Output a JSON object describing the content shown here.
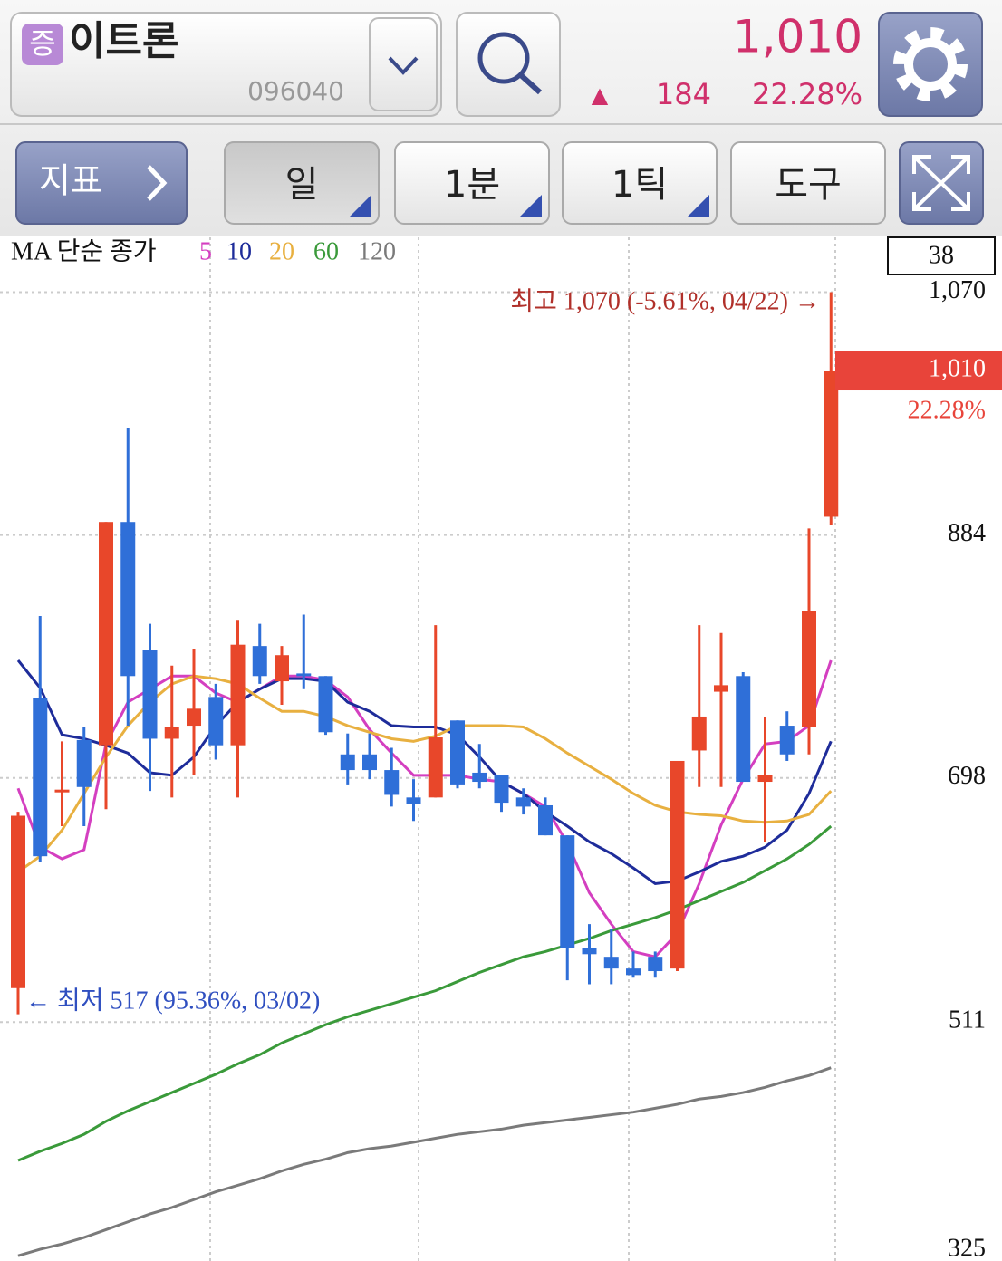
{
  "header": {
    "badge": "증",
    "name": "이트론",
    "code": "096040",
    "price": "1,010",
    "change_arrow": "▲",
    "change": "184",
    "change_rate": "22.28%"
  },
  "toolbar": {
    "indicator": "지표",
    "buttons": [
      "일",
      "1분",
      "1틱",
      "도구"
    ]
  },
  "chart_data": {
    "type": "candlestick",
    "count_label": "38",
    "legend_title": "MA 단순 종가",
    "up_color": "#e8472a",
    "down_color": "#2f6fd8",
    "open": [
      537,
      759,
      687,
      727,
      723,
      894,
      796,
      728,
      738,
      760,
      723,
      799,
      772,
      778,
      776,
      716,
      716,
      704,
      683,
      683,
      742,
      702,
      700,
      683,
      677,
      654,
      568,
      561,
      552,
      561,
      552,
      719,
      764,
      776,
      695,
      738,
      737,
      898
    ],
    "high": [
      672,
      822,
      726,
      737,
      894,
      966,
      816,
      784,
      797,
      770,
      819,
      816,
      799,
      823,
      776,
      732,
      732,
      721,
      697,
      815,
      742,
      724,
      700,
      690,
      683,
      654,
      586,
      582,
      565,
      565,
      711,
      815,
      809,
      779,
      745,
      749,
      889,
      1070
    ],
    "low": [
      517,
      634,
      661,
      661,
      674,
      738,
      688,
      683,
      700,
      712,
      683,
      770,
      754,
      766,
      731,
      693,
      697,
      676,
      665,
      683,
      690,
      690,
      672,
      670,
      654,
      543,
      540,
      540,
      545,
      545,
      550,
      691,
      691,
      695,
      649,
      711,
      716,
      892
    ],
    "close": [
      669,
      638,
      689,
      691,
      894,
      776,
      728,
      737,
      751,
      723,
      800,
      776,
      792,
      776,
      733,
      704,
      704,
      685,
      678,
      729,
      693,
      695,
      679,
      676,
      654,
      568,
      563,
      552,
      547,
      550,
      711,
      745,
      769,
      695,
      700,
      716,
      826,
      1010
    ],
    "series": [
      {
        "name": "5",
        "color": "#d43fc0",
        "values": [
          690,
          645,
          636,
          643,
          724,
          756,
          766,
          776,
          776,
          763,
          756,
          766,
          776,
          776,
          773,
          760,
          735,
          717,
          700,
          700,
          700,
          697,
          695,
          686,
          676,
          648,
          610,
          586,
          565,
          561,
          579,
          617,
          662,
          697,
          724,
          726,
          738,
          788
        ]
      },
      {
        "name": "10",
        "color": "#1e2c9a",
        "values": [
          788,
          767,
          731,
          728,
          723,
          717,
          702,
          700,
          714,
          738,
          756,
          766,
          774,
          774,
          772,
          756,
          749,
          738,
          737,
          737,
          731,
          714,
          695,
          686,
          672,
          661,
          649,
          640,
          629,
          617,
          619,
          626,
          634,
          638,
          645,
          658,
          686,
          726
        ]
      },
      {
        "name": "20",
        "color": "#e8b040",
        "values": [
          626,
          638,
          658,
          686,
          714,
          738,
          756,
          770,
          776,
          774,
          770,
          759,
          749,
          749,
          745,
          738,
          733,
          728,
          726,
          730,
          738,
          738,
          738,
          737,
          728,
          717,
          707,
          697,
          686,
          677,
          672,
          670,
          669,
          665,
          664,
          665,
          670,
          688
        ]
      },
      {
        "name": "60",
        "color": "#3a9a3a",
        "values": [
          405,
          412,
          418,
          425,
          435,
          443,
          450,
          457,
          464,
          471,
          479,
          486,
          495,
          502,
          509,
          515,
          520,
          525,
          530,
          535,
          542,
          549,
          555,
          561,
          565,
          570,
          575,
          581,
          586,
          591,
          597,
          604,
          611,
          618,
          627,
          636,
          647,
          661
        ]
      },
      {
        "name": "120",
        "color": "#7a7a7a",
        "values": [
          332,
          337,
          341,
          346,
          352,
          358,
          364,
          369,
          375,
          381,
          386,
          391,
          397,
          402,
          406,
          411,
          414,
          416,
          419,
          422,
          425,
          427,
          429,
          432,
          434,
          436,
          438,
          440,
          442,
          445,
          448,
          452,
          454,
          457,
          461,
          466,
          470,
          476
        ]
      }
    ],
    "ylim": [
      328,
      1112
    ],
    "yticks": [
      {
        "value": 1070,
        "label": "1,070"
      },
      884,
      698,
      511,
      325
    ],
    "grid": true,
    "annotations": [
      "최고 1,070 (-5.61%, 04/22) →",
      "← 최저 517 (95.36%, 03/02)"
    ],
    "last_value": 1010,
    "last_value_label": "1,010",
    "last_change_label": "22.28%"
  }
}
